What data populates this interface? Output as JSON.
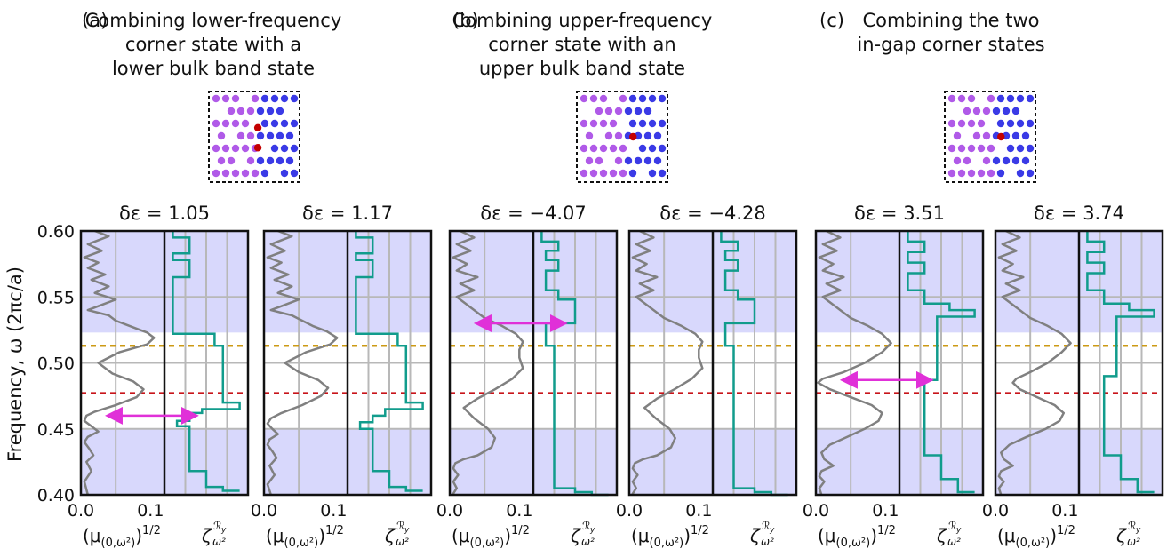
{
  "figure": {
    "groups": [
      {
        "label": "(a)",
        "title_lines": [
          "Combining lower-frequency",
          "corner state with a",
          "lower bulk band state"
        ]
      },
      {
        "label": "(b)",
        "title_lines": [
          "Combining upper-frequency",
          "corner state with an",
          "upper bulk band state"
        ]
      },
      {
        "label": "(c)",
        "title_lines": [
          "Combining the two",
          "in-gap corner states"
        ]
      }
    ],
    "ylabel": "Frequency, ω (2πc/a)",
    "xlabel_mu": "(μ",
    "xlabel_mu_sub": "(0,ω²)",
    "xlabel_mu_close": ")",
    "xlabel_mu_sup": "1/2",
    "xlabel_zeta": "ζ",
    "xlabel_zeta_sup": "ℛ",
    "xlabel_zeta_supsub": "y",
    "xlabel_zeta_sub": "ω²",
    "colors": {
      "bulk_band": "#d8d8fc",
      "mu_line": "#808080",
      "zeta_line": "#119c8c",
      "corner_upper": "#cc9a14",
      "corner_lower": "#c8141a",
      "arrow": "#e030d8",
      "site_purple": "#b05ae8",
      "site_blue": "#3a3ae6",
      "site_red": "#c40000"
    }
  },
  "chart_data": {
    "type": "line",
    "ylim": [
      0.4,
      0.6
    ],
    "yticks": [
      "0.40",
      "0.45",
      "0.50",
      "0.55",
      "0.60"
    ],
    "mu_xlim": [
      0.0,
      0.12
    ],
    "mu_xticks": [
      "0.0",
      "0.1"
    ],
    "bulk_bands": [
      [
        0.4,
        0.45
      ],
      [
        0.523,
        0.6
      ]
    ],
    "corner_state_frequencies": {
      "upper": 0.513,
      "lower": 0.477
    },
    "panels": [
      {
        "group": 0,
        "delta_eps": "δε = 1.05",
        "arrow_freq": 0.46,
        "mu": {
          "x": [
            0.02,
            0.04,
            0.01,
            0.03,
            0.005,
            0.025,
            0.01,
            0.035,
            0.015,
            0.04,
            0.02,
            0.05,
            0.03,
            0.01,
            0.04,
            0.05,
            0.065,
            0.08,
            0.095,
            0.105,
            0.095,
            0.055,
            0.025,
            0.045,
            0.075,
            0.09,
            0.08,
            0.05,
            0.02,
            0.008,
            0.005,
            0.015,
            0.025,
            0.01,
            0.005,
            0.012,
            0.018,
            0.008,
            0.015,
            0.005,
            0.01
          ],
          "y": [
            0.6,
            0.596,
            0.59,
            0.585,
            0.58,
            0.576,
            0.572,
            0.567,
            0.563,
            0.558,
            0.553,
            0.548,
            0.544,
            0.54,
            0.536,
            0.532,
            0.529,
            0.526,
            0.523,
            0.519,
            0.514,
            0.508,
            0.5,
            0.492,
            0.486,
            0.48,
            0.474,
            0.468,
            0.463,
            0.46,
            0.456,
            0.452,
            0.448,
            0.444,
            0.44,
            0.435,
            0.43,
            0.425,
            0.418,
            0.41,
            0.4
          ]
        },
        "zeta": {
          "x": [
            0.1,
            0.3,
            0.3,
            0.1,
            0.1,
            0.3,
            0.3,
            0.1,
            0.1,
            0.6,
            0.6,
            0.7,
            0.7,
            0.9,
            0.9,
            0.45,
            0.45,
            0.3,
            0.3,
            0.15,
            0.15,
            0.3,
            0.3,
            0.5,
            0.5,
            0.7,
            0.7,
            0.9
          ],
          "y": [
            0.595,
            0.595,
            0.583,
            0.583,
            0.578,
            0.578,
            0.565,
            0.565,
            0.522,
            0.522,
            0.513,
            0.513,
            0.47,
            0.47,
            0.465,
            0.465,
            0.462,
            0.462,
            0.456,
            0.456,
            0.452,
            0.452,
            0.418,
            0.418,
            0.406,
            0.406,
            0.403,
            0.403
          ]
        }
      },
      {
        "group": 0,
        "delta_eps": "δε = 1.17",
        "arrow_freq": null,
        "mu": {
          "x": [
            0.02,
            0.04,
            0.01,
            0.03,
            0.005,
            0.025,
            0.01,
            0.035,
            0.015,
            0.04,
            0.02,
            0.05,
            0.03,
            0.01,
            0.04,
            0.055,
            0.07,
            0.09,
            0.105,
            0.095,
            0.06,
            0.03,
            0.05,
            0.078,
            0.092,
            0.082,
            0.055,
            0.025,
            0.01,
            0.005,
            0.012,
            0.02,
            0.008,
            0.005,
            0.012,
            0.018,
            0.008,
            0.015,
            0.005,
            0.01
          ],
          "y": [
            0.6,
            0.596,
            0.59,
            0.585,
            0.58,
            0.576,
            0.572,
            0.567,
            0.563,
            0.558,
            0.553,
            0.548,
            0.544,
            0.54,
            0.536,
            0.532,
            0.528,
            0.524,
            0.519,
            0.514,
            0.508,
            0.5,
            0.493,
            0.487,
            0.481,
            0.475,
            0.468,
            0.462,
            0.458,
            0.454,
            0.45,
            0.446,
            0.442,
            0.438,
            0.433,
            0.428,
            0.422,
            0.415,
            0.408,
            0.4
          ]
        },
        "zeta": {
          "x": [
            0.1,
            0.3,
            0.3,
            0.1,
            0.1,
            0.3,
            0.3,
            0.1,
            0.1,
            0.6,
            0.6,
            0.7,
            0.7,
            0.9,
            0.9,
            0.45,
            0.45,
            0.3,
            0.3,
            0.15,
            0.15,
            0.3,
            0.3,
            0.5,
            0.5,
            0.7,
            0.7,
            0.9
          ],
          "y": [
            0.595,
            0.595,
            0.583,
            0.583,
            0.578,
            0.578,
            0.565,
            0.565,
            0.522,
            0.522,
            0.513,
            0.513,
            0.47,
            0.47,
            0.465,
            0.465,
            0.46,
            0.46,
            0.455,
            0.455,
            0.45,
            0.45,
            0.418,
            0.418,
            0.406,
            0.406,
            0.403,
            0.403
          ]
        }
      },
      {
        "group": 1,
        "delta_eps": "δε = −4.07",
        "arrow_freq": 0.53,
        "mu": {
          "x": [
            0.015,
            0.035,
            0.01,
            0.03,
            0.005,
            0.025,
            0.01,
            0.04,
            0.015,
            0.035,
            0.01,
            0.03,
            0.05,
            0.075,
            0.095,
            0.105,
            0.1,
            0.1,
            0.105,
            0.09,
            0.065,
            0.04,
            0.02,
            0.035,
            0.055,
            0.065,
            0.06,
            0.04,
            0.02,
            0.008,
            0.005,
            0.012,
            0.005,
            0.01,
            0.004
          ],
          "y": [
            0.6,
            0.595,
            0.59,
            0.585,
            0.58,
            0.575,
            0.57,
            0.565,
            0.56,
            0.555,
            0.55,
            0.542,
            0.534,
            0.528,
            0.522,
            0.516,
            0.51,
            0.504,
            0.496,
            0.488,
            0.48,
            0.473,
            0.466,
            0.458,
            0.45,
            0.443,
            0.436,
            0.43,
            0.427,
            0.424,
            0.42,
            0.415,
            0.41,
            0.405,
            0.4
          ]
        },
        "zeta": {
          "x": [
            0.1,
            0.3,
            0.3,
            0.15,
            0.15,
            0.3,
            0.3,
            0.15,
            0.15,
            0.3,
            0.3,
            0.5,
            0.5,
            0.15,
            0.15,
            0.25,
            0.25,
            0.5,
            0.5,
            0.7,
            0.7,
            0.9
          ],
          "y": [
            0.592,
            0.592,
            0.585,
            0.585,
            0.578,
            0.578,
            0.57,
            0.57,
            0.555,
            0.555,
            0.548,
            0.548,
            0.53,
            0.53,
            0.513,
            0.513,
            0.405,
            0.405,
            0.402,
            0.402,
            0.4,
            0.4
          ]
        }
      },
      {
        "group": 1,
        "delta_eps": "δε = −4.28",
        "arrow_freq": null,
        "mu": {
          "x": [
            0.015,
            0.035,
            0.01,
            0.03,
            0.005,
            0.025,
            0.01,
            0.04,
            0.015,
            0.035,
            0.01,
            0.03,
            0.05,
            0.075,
            0.095,
            0.105,
            0.1,
            0.1,
            0.105,
            0.09,
            0.065,
            0.04,
            0.022,
            0.038,
            0.058,
            0.066,
            0.06,
            0.04,
            0.02,
            0.008,
            0.005,
            0.012,
            0.005,
            0.01,
            0.004
          ],
          "y": [
            0.6,
            0.595,
            0.59,
            0.585,
            0.58,
            0.575,
            0.57,
            0.565,
            0.56,
            0.555,
            0.55,
            0.542,
            0.534,
            0.528,
            0.522,
            0.516,
            0.51,
            0.504,
            0.496,
            0.488,
            0.48,
            0.473,
            0.466,
            0.458,
            0.45,
            0.443,
            0.436,
            0.43,
            0.427,
            0.424,
            0.42,
            0.415,
            0.41,
            0.405,
            0.4
          ]
        },
        "zeta": {
          "x": [
            0.1,
            0.3,
            0.3,
            0.15,
            0.15,
            0.3,
            0.3,
            0.15,
            0.15,
            0.3,
            0.3,
            0.5,
            0.5,
            0.15,
            0.15,
            0.25,
            0.25,
            0.5,
            0.5,
            0.7,
            0.7,
            0.9
          ],
          "y": [
            0.592,
            0.592,
            0.585,
            0.585,
            0.578,
            0.578,
            0.57,
            0.57,
            0.555,
            0.555,
            0.548,
            0.548,
            0.53,
            0.53,
            0.513,
            0.513,
            0.405,
            0.405,
            0.402,
            0.402,
            0.4,
            0.4
          ]
        }
      },
      {
        "group": 2,
        "delta_eps": "δε = 3.51",
        "arrow_freq": 0.487,
        "mu": {
          "x": [
            0.015,
            0.035,
            0.01,
            0.03,
            0.005,
            0.025,
            0.01,
            0.04,
            0.015,
            0.035,
            0.01,
            0.03,
            0.05,
            0.075,
            0.095,
            0.108,
            0.095,
            0.07,
            0.04,
            0.01,
            0.003,
            0.02,
            0.05,
            0.08,
            0.095,
            0.09,
            0.07,
            0.045,
            0.02,
            0.008,
            0.012,
            0.025,
            0.008,
            0.005,
            0.012,
            0.005,
            0.008
          ],
          "y": [
            0.6,
            0.595,
            0.59,
            0.585,
            0.58,
            0.575,
            0.57,
            0.565,
            0.56,
            0.555,
            0.55,
            0.542,
            0.534,
            0.528,
            0.522,
            0.515,
            0.508,
            0.5,
            0.493,
            0.488,
            0.485,
            0.48,
            0.474,
            0.468,
            0.462,
            0.456,
            0.45,
            0.444,
            0.438,
            0.432,
            0.427,
            0.422,
            0.418,
            0.414,
            0.41,
            0.405,
            0.4
          ]
        },
        "zeta": {
          "x": [
            0.1,
            0.3,
            0.3,
            0.1,
            0.1,
            0.3,
            0.3,
            0.1,
            0.1,
            0.3,
            0.3,
            0.6,
            0.6,
            0.9,
            0.9,
            0.45,
            0.45,
            0.3,
            0.3,
            0.5,
            0.5,
            0.7,
            0.7,
            0.9
          ],
          "y": [
            0.592,
            0.592,
            0.584,
            0.584,
            0.576,
            0.576,
            0.568,
            0.568,
            0.555,
            0.555,
            0.545,
            0.545,
            0.54,
            0.54,
            0.535,
            0.535,
            0.487,
            0.487,
            0.43,
            0.43,
            0.412,
            0.412,
            0.402,
            0.402
          ]
        }
      },
      {
        "group": 2,
        "delta_eps": "δε = 3.74",
        "arrow_freq": null,
        "mu": {
          "x": [
            0.015,
            0.035,
            0.01,
            0.03,
            0.005,
            0.025,
            0.01,
            0.04,
            0.015,
            0.035,
            0.01,
            0.03,
            0.05,
            0.075,
            0.095,
            0.108,
            0.095,
            0.075,
            0.05,
            0.03,
            0.025,
            0.035,
            0.06,
            0.085,
            0.098,
            0.092,
            0.072,
            0.045,
            0.02,
            0.008,
            0.012,
            0.025,
            0.008,
            0.005,
            0.012,
            0.005,
            0.008
          ],
          "y": [
            0.6,
            0.595,
            0.59,
            0.585,
            0.58,
            0.575,
            0.57,
            0.565,
            0.56,
            0.555,
            0.55,
            0.542,
            0.534,
            0.528,
            0.522,
            0.515,
            0.508,
            0.5,
            0.493,
            0.488,
            0.485,
            0.48,
            0.474,
            0.468,
            0.462,
            0.456,
            0.45,
            0.444,
            0.438,
            0.432,
            0.427,
            0.422,
            0.418,
            0.414,
            0.41,
            0.405,
            0.4
          ]
        },
        "zeta": {
          "x": [
            0.1,
            0.3,
            0.3,
            0.1,
            0.1,
            0.3,
            0.3,
            0.1,
            0.1,
            0.3,
            0.3,
            0.6,
            0.6,
            0.9,
            0.9,
            0.45,
            0.45,
            0.3,
            0.3,
            0.5,
            0.5,
            0.7,
            0.7,
            0.9
          ],
          "y": [
            0.592,
            0.592,
            0.584,
            0.584,
            0.576,
            0.576,
            0.568,
            0.568,
            0.555,
            0.555,
            0.545,
            0.545,
            0.54,
            0.54,
            0.535,
            0.535,
            0.49,
            0.49,
            0.43,
            0.43,
            0.412,
            0.412,
            0.402,
            0.402
          ]
        }
      }
    ]
  }
}
